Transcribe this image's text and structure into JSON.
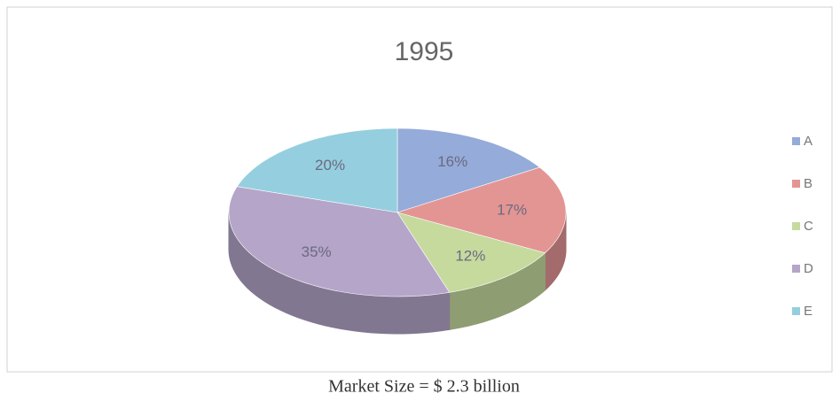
{
  "chart_data": {
    "type": "pie3d",
    "title": "1995",
    "categories": [
      "A",
      "B",
      "C",
      "D",
      "E"
    ],
    "values": [
      16,
      17,
      12,
      35,
      20
    ],
    "value_labels": [
      "16%",
      "17%",
      "12%",
      "35%",
      "20%"
    ],
    "colors": [
      "#95abd9",
      "#e39594",
      "#c6da9e",
      "#b5a5c9",
      "#95cfdf"
    ],
    "legend": "right",
    "caption": "Market Size = $ 2.3 billion"
  }
}
